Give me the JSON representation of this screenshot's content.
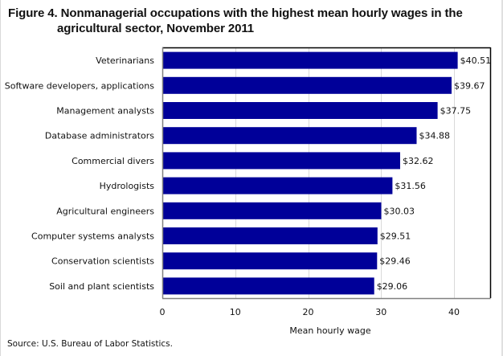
{
  "chart_data": {
    "type": "bar",
    "orientation": "horizontal",
    "title": "Figure 4. Nonmanagerial  occupations with the highest mean hourly wages in the agricultural  sector, November 2011",
    "title_lines": [
      "Figure 4. Nonmanagerial  occupations with the highest mean hourly wages in the",
      "agricultural  sector, November 2011"
    ],
    "categories": [
      "Veterinarians",
      "Software developers, applications",
      "Management analysts",
      "Database administrators",
      "Commercial divers",
      "Hydrologists",
      "Agricultural engineers",
      "Computer systems analysts",
      "Conservation scientists",
      "Soil and plant scientists"
    ],
    "values": [
      40.51,
      39.67,
      37.75,
      34.88,
      32.62,
      31.56,
      30.03,
      29.51,
      29.46,
      29.06
    ],
    "data_labels": [
      "$40.51",
      "$39.67",
      "$37.75",
      "$34.88",
      "$32.62",
      "$31.56",
      "$30.03",
      "$29.51",
      "$29.46",
      "$29.06"
    ],
    "xlabel": "Mean hourly wage",
    "ylabel": "",
    "xlim": [
      0,
      45
    ],
    "xticks": [
      0,
      10,
      20,
      30,
      40
    ],
    "xtick_labels": [
      "0",
      "10",
      "20",
      "30",
      "40"
    ],
    "grid": "vertical",
    "legend": "none",
    "bar_color": "#000099",
    "source": "Source:  U.S. Bureau  of Labor Statistics."
  }
}
